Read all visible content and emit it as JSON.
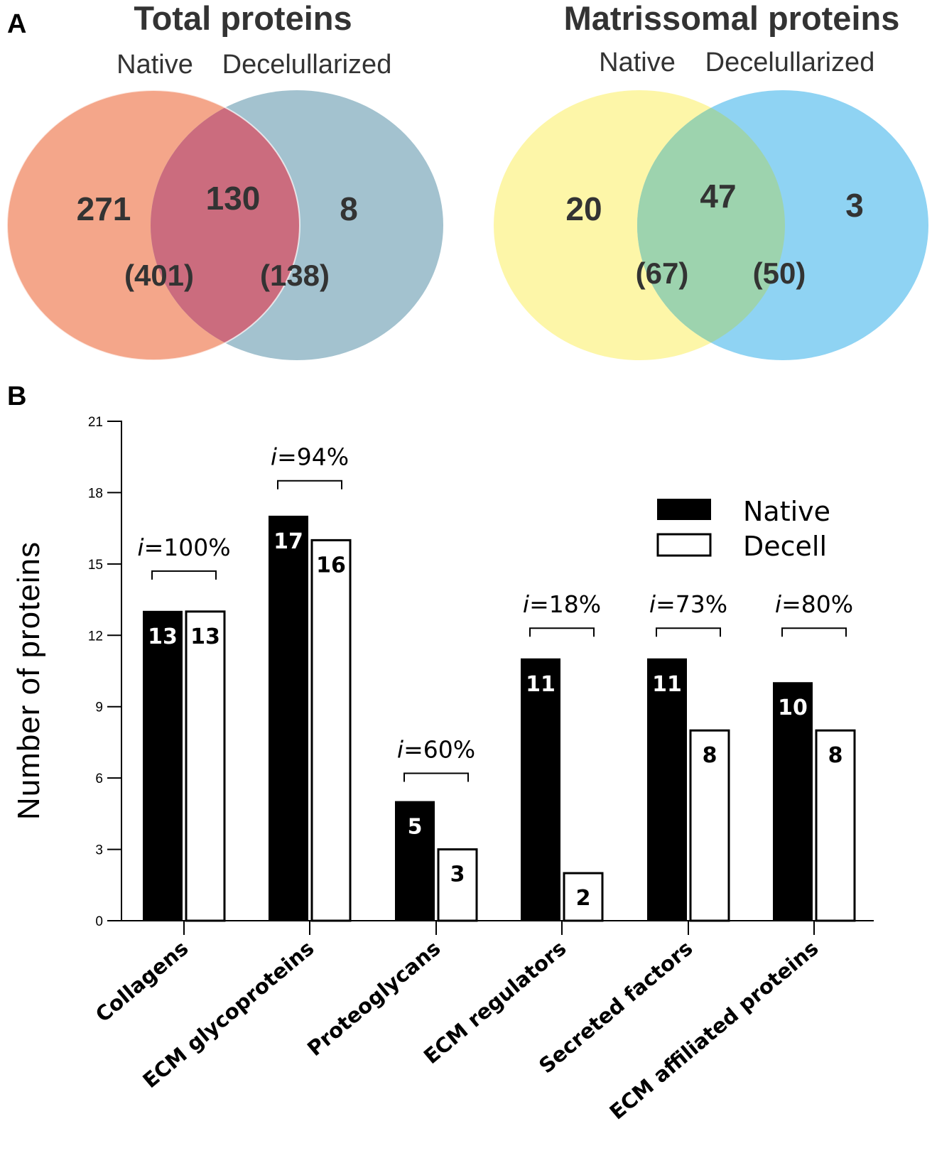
{
  "panel_a": {
    "letter": "A",
    "venns": [
      {
        "title": "Total proteins",
        "set_labels": [
          "Native",
          "Decelullarized"
        ],
        "colors": {
          "left": "#f4a68a",
          "right": "#a3c2cf",
          "overlap": "#cb6c7e"
        },
        "counts": {
          "left_only": "271",
          "overlap": "130",
          "right_only": "8"
        },
        "totals": {
          "left": "(401)",
          "right": "(138)"
        }
      },
      {
        "title": "Matrissomal proteins",
        "set_labels": [
          "Native",
          "Decelullarized"
        ],
        "colors": {
          "left": "#fdf6a8",
          "right": "#8fd3f3",
          "overlap": "#9dd3ae"
        },
        "counts": {
          "left_only": "20",
          "overlap": "47",
          "right_only": "3"
        },
        "totals": {
          "left": "(67)",
          "right": "(50)"
        }
      }
    ]
  },
  "chart_data": {
    "type": "bar",
    "panel_letter": "B",
    "ylabel": "Number of proteins",
    "ylim": [
      0,
      21
    ],
    "yticks": [
      0,
      3,
      6,
      9,
      12,
      15,
      18,
      21
    ],
    "categories": [
      "Collagens",
      "ECM glycoproteins",
      "Proteoglycans",
      "ECM regulators",
      "Secreted factors",
      "ECM affiliated proteins"
    ],
    "series": [
      {
        "name": "Native",
        "color": "#000000",
        "values": [
          13,
          17,
          5,
          11,
          11,
          10
        ]
      },
      {
        "name": "Decell",
        "color": "#ffffff",
        "values": [
          13,
          16,
          3,
          2,
          8,
          8
        ]
      }
    ],
    "annotations": [
      {
        "category": "Collagens",
        "prefix": "i",
        "text": "=100%",
        "bracket_value": 14.7
      },
      {
        "category": "ECM glycoproteins",
        "prefix": "i",
        "text": "=94%",
        "bracket_value": 18.5
      },
      {
        "category": "Proteoglycans",
        "prefix": "i",
        "text": "=60%",
        "bracket_value": 6.2
      },
      {
        "category": "ECM regulators",
        "prefix": "i",
        "text": "=18%",
        "bracket_value": 12.3
      },
      {
        "category": "Secreted factors",
        "prefix": "i",
        "text": "=73%",
        "bracket_value": 12.3
      },
      {
        "category": "ECM affiliated proteins",
        "prefix": "i",
        "text": "=80%",
        "bracket_value": 12.3
      }
    ],
    "legend": {
      "position": "top-right",
      "entries": [
        "Native",
        "Decell"
      ]
    }
  }
}
